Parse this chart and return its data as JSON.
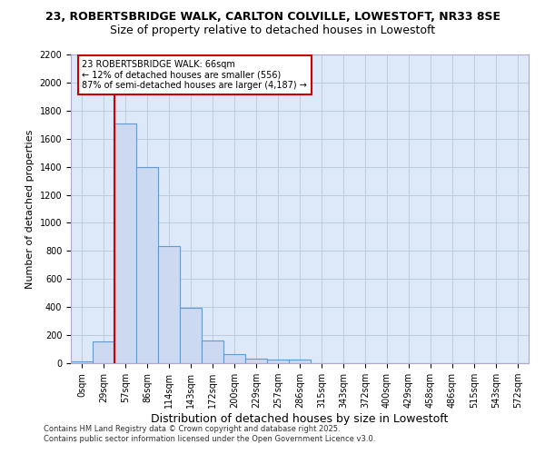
{
  "title1": "23, ROBERTSBRIDGE WALK, CARLTON COLVILLE, LOWESTOFT, NR33 8SE",
  "title2": "Size of property relative to detached houses in Lowestoft",
  "xlabel": "Distribution of detached houses by size in Lowestoft",
  "ylabel": "Number of detached properties",
  "footer1": "Contains HM Land Registry data © Crown copyright and database right 2025.",
  "footer2": "Contains public sector information licensed under the Open Government Licence v3.0.",
  "bar_color": "#ccd9f0",
  "bar_edge_color": "#6699cc",
  "grid_color": "#bbccdd",
  "background_color": "#dde8f8",
  "annotation_box_color": "#cc0000",
  "vline_color": "#cc0000",
  "categories": [
    "0sqm",
    "29sqm",
    "57sqm",
    "86sqm",
    "114sqm",
    "143sqm",
    "172sqm",
    "200sqm",
    "229sqm",
    "257sqm",
    "286sqm",
    "315sqm",
    "343sqm",
    "372sqm",
    "400sqm",
    "429sqm",
    "458sqm",
    "486sqm",
    "515sqm",
    "543sqm",
    "572sqm"
  ],
  "values": [
    15,
    155,
    1710,
    1400,
    835,
    395,
    160,
    65,
    30,
    25,
    25,
    0,
    0,
    0,
    0,
    0,
    0,
    0,
    0,
    0,
    0
  ],
  "annotation_line1": "23 ROBERTSBRIDGE WALK: 66sqm",
  "annotation_line2": "← 12% of detached houses are smaller (556)",
  "annotation_line3": "87% of semi-detached houses are larger (4,187) →",
  "vline_bar_index": 2,
  "ylim": [
    0,
    2200
  ],
  "yticks": [
    0,
    200,
    400,
    600,
    800,
    1000,
    1200,
    1400,
    1600,
    1800,
    2000,
    2200
  ],
  "title1_fontsize": 9,
  "title2_fontsize": 9,
  "ylabel_fontsize": 8,
  "xlabel_fontsize": 9,
  "tick_fontsize": 7,
  "footer_fontsize": 6
}
